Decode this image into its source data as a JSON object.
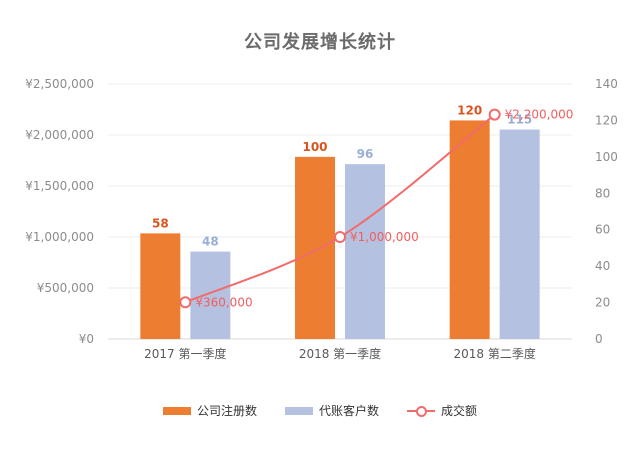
{
  "chart_data": {
    "type": "bar",
    "title": "公司发展增长统计",
    "categories": [
      "2017 第一季度",
      "2018 第一季度",
      "2018 第二季度"
    ],
    "series": [
      {
        "name": "公司注册数",
        "type": "bar",
        "axis": "right",
        "values": [
          58,
          100,
          120
        ],
        "labels": [
          "58",
          "100",
          "120"
        ],
        "color": "#ed7d31"
      },
      {
        "name": "代账客户数",
        "type": "bar",
        "axis": "right",
        "values": [
          48,
          96,
          115
        ],
        "labels": [
          "48",
          "96",
          "115"
        ],
        "color": "#b4c1e0"
      },
      {
        "name": "成交额",
        "type": "line",
        "axis": "left",
        "values": [
          360000,
          1000000,
          2200000
        ],
        "labels": [
          "¥360,000",
          "¥1,000,000",
          "¥2,200,000"
        ],
        "color": "#f26b6b"
      }
    ],
    "y_left": {
      "ylim": [
        0,
        2500000
      ],
      "ticks": [
        "¥0",
        "¥500,000",
        "¥1,000,000",
        "¥1,500,000",
        "¥2,000,000",
        "¥2,500,000"
      ]
    },
    "y_right": {
      "ylim": [
        0,
        140
      ],
      "ticks": [
        "0",
        "20",
        "40",
        "60",
        "80",
        "100",
        "120",
        "140"
      ]
    },
    "grid": true,
    "legend_position": "bottom-center"
  }
}
